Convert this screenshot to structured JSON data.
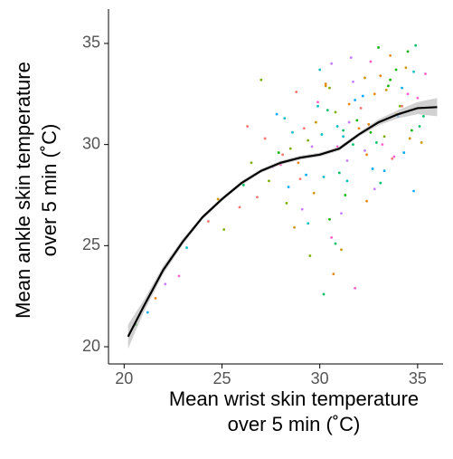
{
  "chart_data": {
    "type": "scatter",
    "xlabel": [
      "Mean wrist skin temperature",
      "over 5 min (˚C)"
    ],
    "ylabel": [
      "Mean ankle skin temperature",
      "over 5 min (˚C)"
    ],
    "xlim": [
      19.2,
      36.3
    ],
    "ylim": [
      19.15,
      36.7
    ],
    "xticks": [
      20,
      25,
      30,
      35
    ],
    "yticks": [
      20,
      25,
      30,
      35
    ],
    "palette": [
      "#f8766d",
      "#7cae00",
      "#00bfc4",
      "#c77cff",
      "#e68613",
      "#0cb702",
      "#00a9ff",
      "#ff61cc",
      "#cd9600",
      "#00be67"
    ],
    "x": [
      28.1,
      29.4,
      30.2,
      31.5,
      32.8,
      33.6,
      34.2,
      30.9,
      29.7,
      31.2,
      32.1,
      33.3,
      34.8,
      27.6,
      28.9,
      30.5,
      31.8,
      32.6,
      33.9,
      35.1,
      29.2,
      30.8,
      31.4,
      32.3,
      33.1,
      34.5,
      28.4,
      29.9,
      31.1,
      32.9,
      33.7,
      34.1,
      30.1,
      31.7,
      32.4,
      27.9,
      29.3,
      30.6,
      33.4,
      34.9,
      26.8,
      27.4,
      28.6,
      29.1,
      30.3,
      31.9,
      32.7,
      33.2,
      34.4,
      35.3,
      25.9,
      26.5,
      28.2,
      29.6,
      30.7,
      31.3,
      32.2,
      33.8,
      34.6,
      30.4,
      24.3,
      25.1,
      23.2,
      22.1,
      21.6,
      20.6,
      21.2,
      22.8,
      24.8,
      26.1,
      28.8,
      29.5,
      30.9,
      31.6,
      32.5,
      33.5,
      34.3,
      35.4,
      29.8,
      31.0,
      27.2,
      28.3,
      30.0,
      31.4,
      32.0,
      33.0,
      34.0,
      35.0,
      28.7,
      30.2,
      29.0,
      30.5,
      31.2,
      32.8,
      33.6,
      34.7,
      27.8,
      31.8,
      32.3,
      33.1,
      34.2,
      28.5,
      29.4,
      30.6,
      31.5,
      32.6,
      33.3,
      34.5,
      35.2,
      30.8,
      26.3,
      27.0,
      29.9,
      31.1,
      32.4,
      33.9,
      34.8,
      28.0,
      30.3,
      31.7
    ],
    "y": [
      29.5,
      30.2,
      28.4,
      31.1,
      32.5,
      33.2,
      32.8,
      29.9,
      27.6,
      30.7,
      31.8,
      30.4,
      33.6,
      28.9,
      29.1,
      26.3,
      32.2,
      34.1,
      31.5,
      30.9,
      30.8,
      31.6,
      28.2,
      29.7,
      33.4,
      34.6,
      27.9,
      32.1,
      24.8,
      30.1,
      29.3,
      31.9,
      30.5,
      33.1,
      27.2,
      29.6,
      28.5,
      25.4,
      32.7,
      34.9,
      27.4,
      28.2,
      30.6,
      26.8,
      33.0,
      31.2,
      28.8,
      30.0,
      33.8,
      31.4,
      26.9,
      29.1,
      31.3,
      29.9,
      23.6,
      27.5,
      32.4,
      29.4,
      30.3,
      31.7,
      26.2,
      25.8,
      24.9,
      23.1,
      22.4,
      21.1,
      21.7,
      23.5,
      27.3,
      28.0,
      32.6,
      24.5,
      30.9,
      34.3,
      31.0,
      32.9,
      29.6,
      33.5,
      31.1,
      28.6,
      30.3,
      27.1,
      33.7,
      29.2,
      30.8,
      34.8,
      31.4,
      32.3,
      25.9,
      22.6,
      28.3,
      32.8,
      30.4,
      27.8,
      34.4,
      30.7,
      31.5,
      22.9,
      33.3,
      28.1,
      31.9,
      29.8,
      26.1,
      34.0,
      32.0,
      30.6,
      28.7,
      32.5,
      30.1,
      25.1,
      30.9,
      33.2,
      31.9,
      26.6,
      29.5,
      33.7,
      27.7,
      29.0,
      32.9,
      30.0
    ],
    "fit": {
      "color": "#000000",
      "band_color": "#bdbdbd",
      "x": [
        20.2,
        21,
        22,
        23,
        24,
        25,
        26,
        27,
        28,
        29,
        30,
        31,
        32,
        33,
        34,
        35,
        36
      ],
      "y": [
        20.5,
        22,
        23.8,
        25.2,
        26.4,
        27.3,
        28.1,
        28.7,
        29.1,
        29.35,
        29.5,
        29.8,
        30.5,
        31.1,
        31.5,
        31.8,
        31.85
      ],
      "lower": [
        19.9,
        21.7,
        23.6,
        25.05,
        26.3,
        27.2,
        28.0,
        28.6,
        29.0,
        29.25,
        29.4,
        29.7,
        30.4,
        30.95,
        31.3,
        31.5,
        31.4
      ],
      "upper": [
        21.1,
        22.3,
        24.0,
        25.35,
        26.5,
        27.4,
        28.2,
        28.8,
        29.2,
        29.45,
        29.6,
        29.9,
        30.6,
        31.25,
        31.7,
        32.1,
        32.3
      ]
    }
  }
}
